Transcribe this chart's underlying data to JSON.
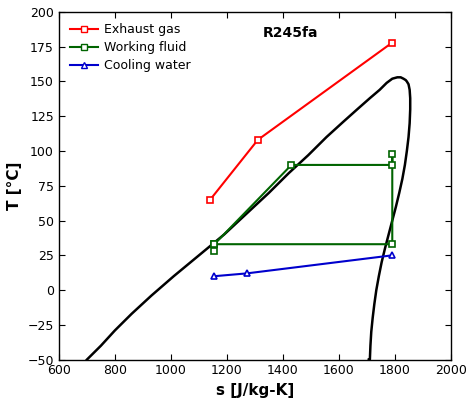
{
  "title": "R245fa",
  "xlabel": "s [J/kg-K]",
  "ylabel": "T [°C]",
  "xlim": [
    600,
    2000
  ],
  "ylim": [
    -50,
    200
  ],
  "xticks": [
    600,
    800,
    1000,
    1200,
    1400,
    1600,
    1800,
    2000
  ],
  "yticks": [
    -50,
    -25,
    0,
    25,
    50,
    75,
    100,
    125,
    150,
    175,
    200
  ],
  "exhaust_s": [
    1140,
    1310,
    1790
  ],
  "exhaust_T": [
    65,
    108,
    178
  ],
  "working_s": [
    1155,
    1155,
    1430,
    1790,
    1790,
    1790,
    1155
  ],
  "working_T": [
    28,
    33,
    90,
    90,
    98,
    33,
    33
  ],
  "cooling_s": [
    1155,
    1270,
    1790
  ],
  "cooling_T": [
    10,
    12,
    25
  ],
  "liq_s": [
    700,
    750,
    800,
    860,
    930,
    1010,
    1100,
    1190,
    1270,
    1350,
    1420,
    1490,
    1555,
    1615,
    1665,
    1710,
    1745,
    1770,
    1790,
    1808,
    1820,
    1830,
    1838,
    1842
  ],
  "liq_T": [
    -50,
    -40,
    -29,
    -17,
    -4,
    10,
    25,
    40,
    55,
    70,
    84,
    97,
    110,
    121,
    130,
    138,
    144,
    149,
    152,
    153,
    153,
    152,
    151,
    150
  ],
  "vap_s": [
    1842,
    1848,
    1852,
    1854,
    1854,
    1852,
    1848,
    1842,
    1835,
    1826,
    1815,
    1803,
    1790,
    1777,
    1764,
    1752,
    1742,
    1733,
    1726,
    1720,
    1715,
    1712,
    1710,
    1708,
    1707,
    1706,
    1706
  ],
  "vap_T": [
    150,
    148,
    144,
    138,
    130,
    120,
    110,
    100,
    90,
    80,
    70,
    60,
    50,
    40,
    30,
    20,
    10,
    0,
    -10,
    -20,
    -30,
    -40,
    -50,
    -50,
    -50,
    -50,
    -50
  ],
  "exhaust_color": "#ff0000",
  "working_color": "#006400",
  "cooling_color": "#0000cd",
  "sat_color": "#000000",
  "legend_labels": [
    "Exhaust gas",
    "Working fluid",
    "Cooling water"
  ],
  "legend_colors": [
    "#ff0000",
    "#006400",
    "#0000cd"
  ]
}
